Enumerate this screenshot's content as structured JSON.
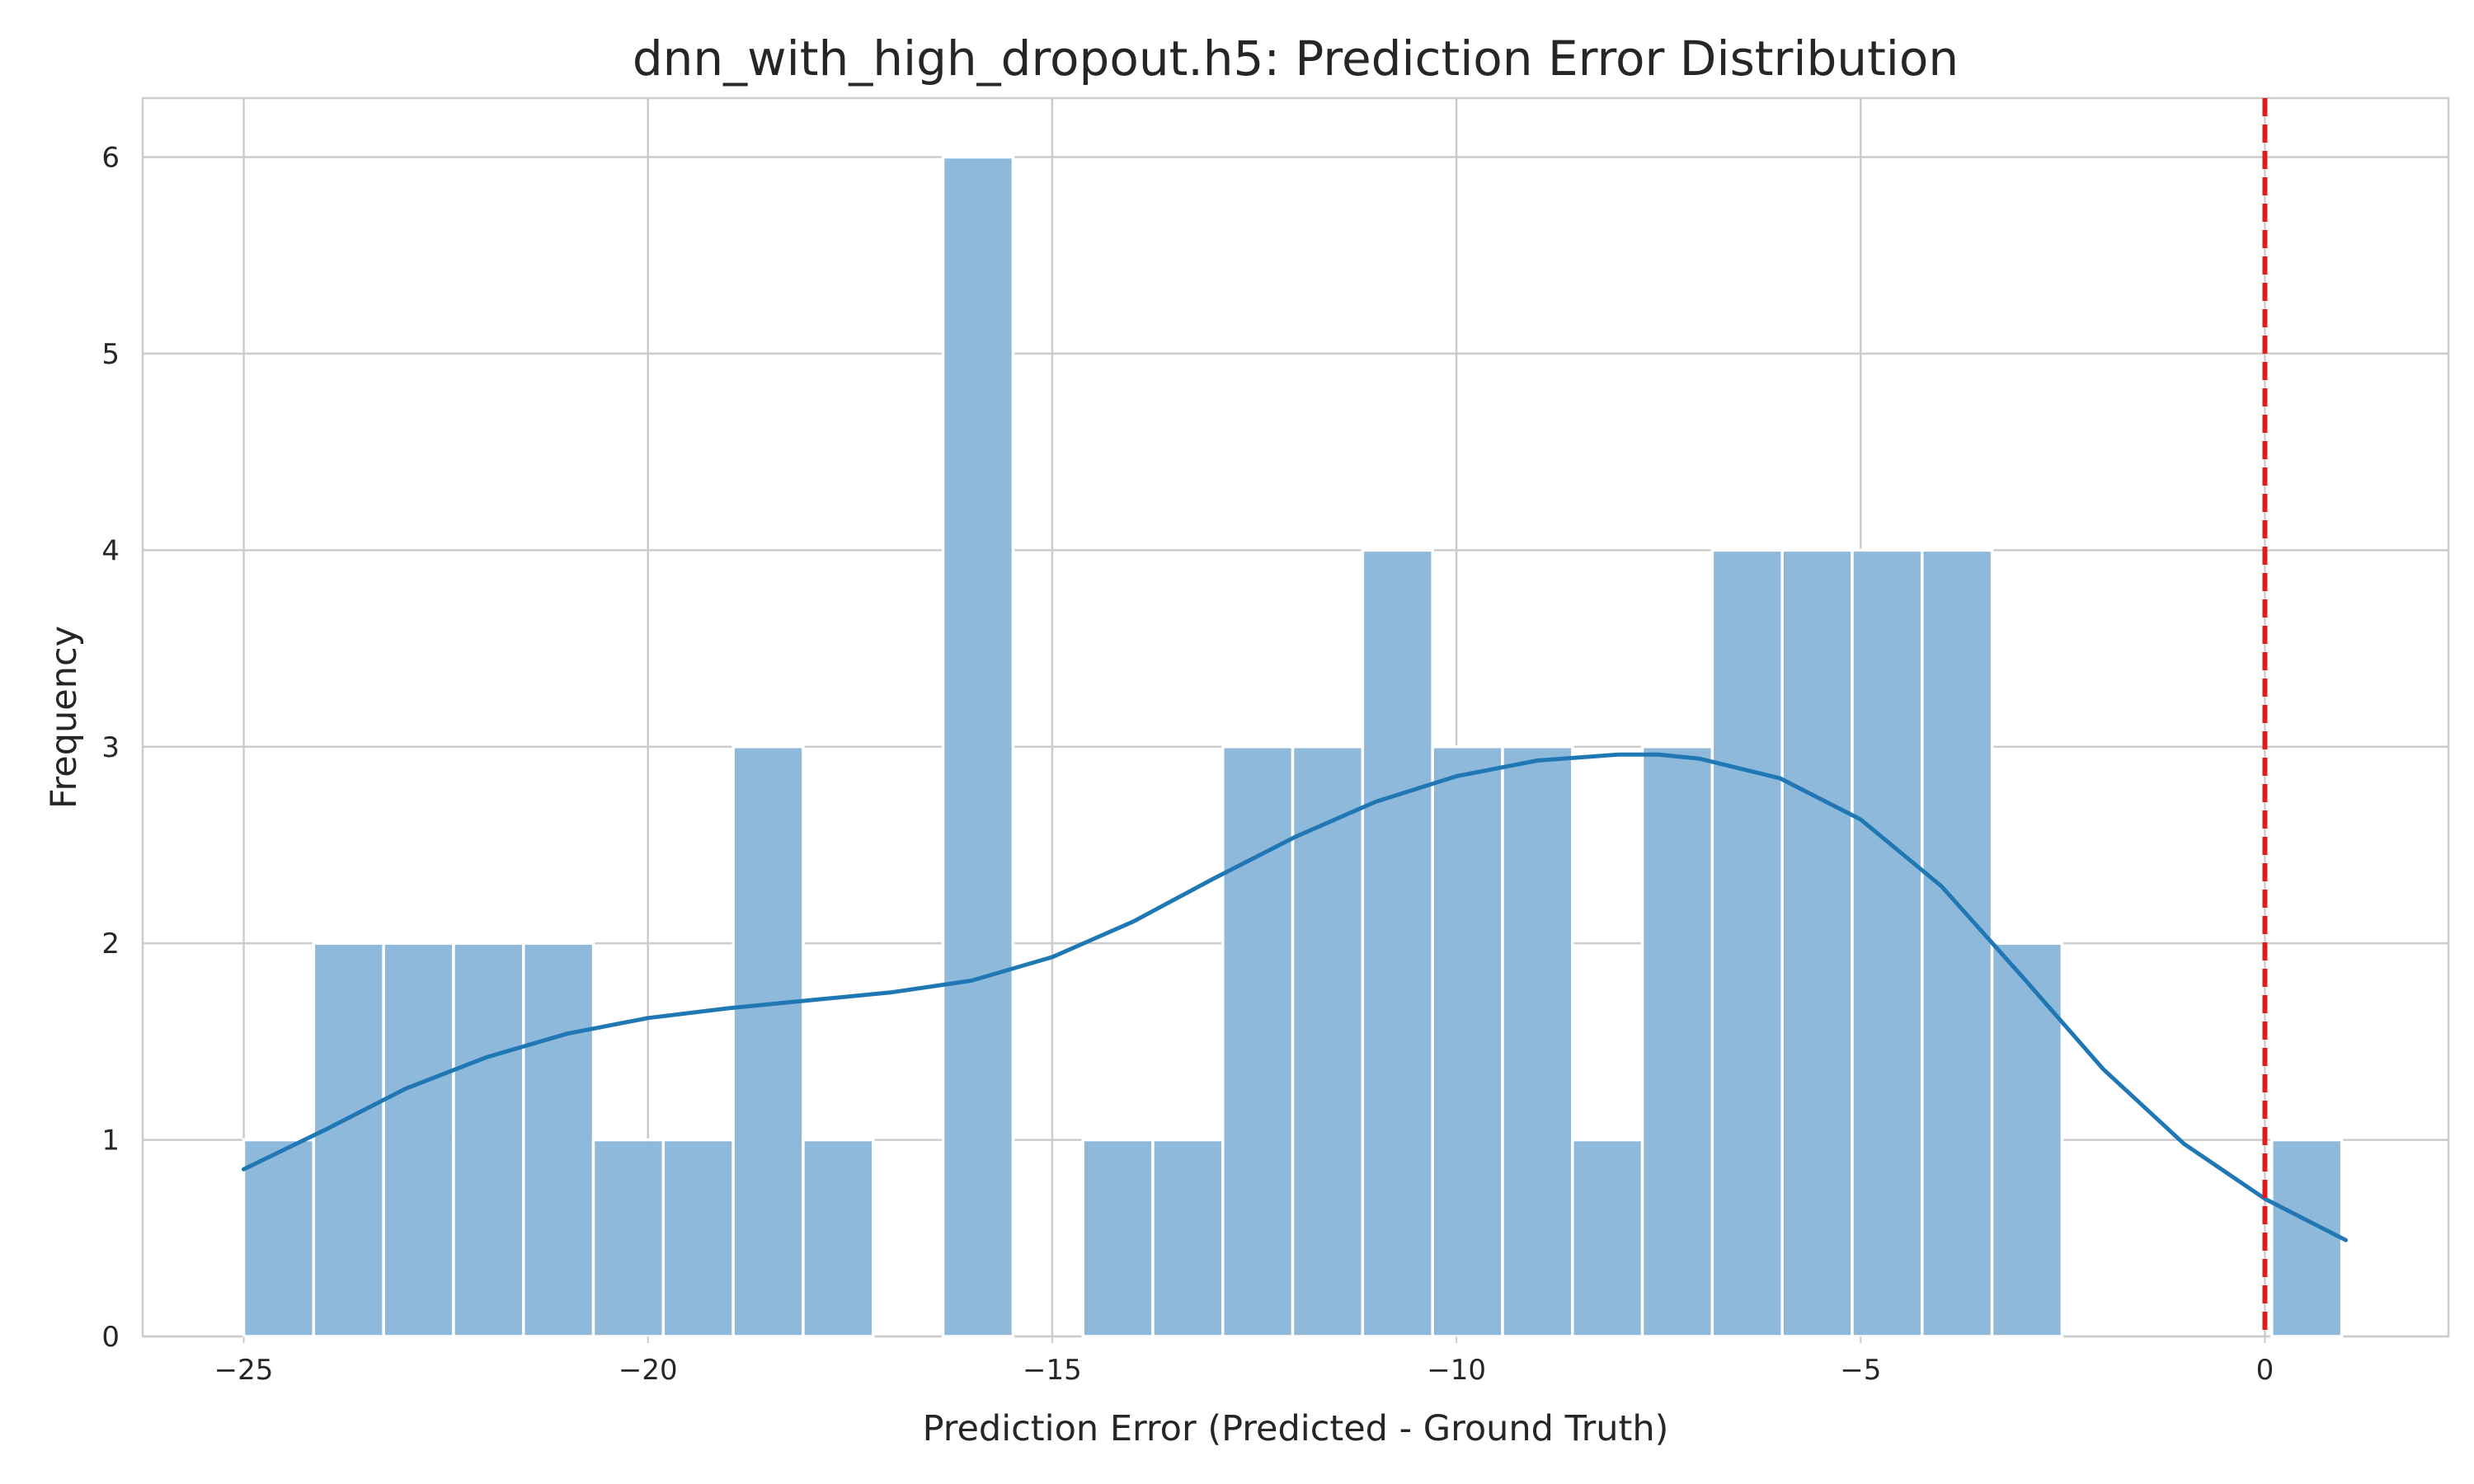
{
  "chart_data": {
    "type": "bar",
    "title": "dnn_with_high_dropout.h5: Prediction Error Distribution",
    "xlabel": "Prediction Error (Predicted - Ground Truth)",
    "ylabel": "Frequency",
    "xlim": [
      -26.25,
      2.27
    ],
    "ylim": [
      0,
      6.3
    ],
    "xticks": [
      -25,
      -20,
      -15,
      -10,
      -5,
      0
    ],
    "xtick_labels": [
      "−25",
      "−20",
      "−15",
      "−10",
      "−5",
      "0"
    ],
    "yticks": [
      0,
      1,
      2,
      3,
      4,
      5,
      6
    ],
    "ytick_labels": [
      "0",
      "1",
      "2",
      "3",
      "4",
      "5",
      "6"
    ],
    "grid": true,
    "bin_start": -25.0,
    "bin_width": 0.865,
    "counts": [
      1,
      2,
      2,
      2,
      2,
      1,
      1,
      3,
      1,
      0,
      6,
      0,
      1,
      1,
      3,
      3,
      4,
      3,
      3,
      1,
      3,
      4,
      4,
      4,
      4,
      2,
      0,
      0,
      0,
      1
    ],
    "bar_color": "#8db8da",
    "kde": {
      "color": "#1f77b4",
      "x": [
        -25.0,
        -24.0,
        -23.0,
        -22.0,
        -21.0,
        -20.0,
        -19.0,
        -18.0,
        -17.0,
        -16.0,
        -15.0,
        -14.0,
        -13.0,
        -12.0,
        -11.0,
        -10.0,
        -9.0,
        -8.0,
        -7.5,
        -7.0,
        -6.0,
        -5.0,
        -4.0,
        -3.0,
        -2.0,
        -1.0,
        0.0,
        1.0
      ],
      "y": [
        0.85,
        1.05,
        1.26,
        1.42,
        1.54,
        1.62,
        1.67,
        1.71,
        1.75,
        1.81,
        1.93,
        2.11,
        2.33,
        2.54,
        2.72,
        2.85,
        2.93,
        2.96,
        2.96,
        2.94,
        2.84,
        2.63,
        2.29,
        1.83,
        1.36,
        0.98,
        0.7,
        0.49
      ]
    },
    "reference_line": {
      "x": 0,
      "color": "#e41a1c",
      "style": "dashed"
    }
  }
}
